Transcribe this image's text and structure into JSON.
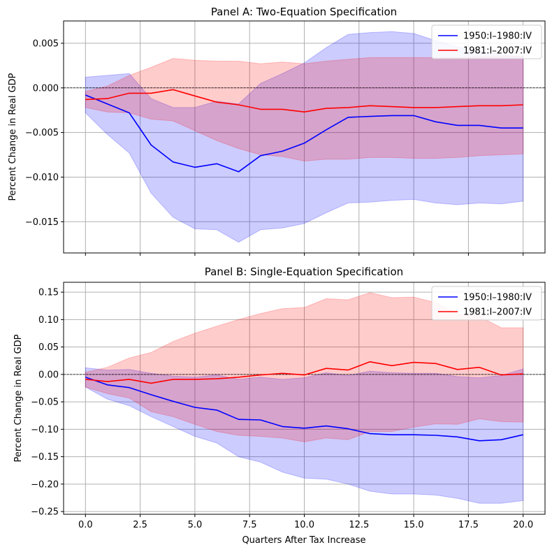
{
  "colors": {
    "blue": "#0000ff",
    "red": "#ff0000",
    "grid": "#b0b0b0"
  },
  "xlabel": "Quarters After Tax Increase",
  "xticks": [
    0.0,
    2.5,
    5.0,
    7.5,
    10.0,
    12.5,
    15.0,
    17.5,
    20.0
  ],
  "xtick_labels": [
    "0.0",
    "2.5",
    "5.0",
    "7.5",
    "10.0",
    "12.5",
    "15.0",
    "17.5",
    "20.0"
  ],
  "chart_data": [
    {
      "type": "line",
      "title": "Panel A: Two-Equation Specification",
      "ylabel": "Percent Change in Real GDP",
      "xlim": [
        -1,
        21
      ],
      "ylim": [
        -0.0185,
        0.0075
      ],
      "yticks": [
        0.005,
        0.0,
        -0.005,
        -0.01,
        -0.015
      ],
      "ytick_labels": [
        "0.005",
        "0.000",
        "−0.005",
        "−0.010",
        "−0.015"
      ],
      "zero_line": true,
      "grid": true,
      "legend": "top-right",
      "x": [
        0,
        1,
        2,
        3,
        4,
        5,
        6,
        7,
        8,
        9,
        10,
        11,
        12,
        13,
        14,
        15,
        16,
        17,
        18,
        19,
        20
      ],
      "series": [
        {
          "name": "1950:I–1980:IV",
          "color": "blue",
          "values": [
            -0.0008,
            -0.0018,
            -0.0028,
            -0.0064,
            -0.0083,
            -0.0089,
            -0.0085,
            -0.0094,
            -0.0076,
            -0.0071,
            -0.0062,
            -0.0047,
            -0.0033,
            -0.0032,
            -0.0031,
            -0.0031,
            -0.0038,
            -0.0042,
            -0.0042,
            -0.0045,
            -0.0045
          ],
          "upper": [
            0.0012,
            0.0014,
            0.0016,
            -0.0012,
            -0.0022,
            -0.0022,
            -0.0015,
            -0.0018,
            0.0005,
            0.0016,
            0.0028,
            0.0045,
            0.006,
            0.0062,
            0.0063,
            0.0061,
            0.0053,
            0.0046,
            0.0041,
            0.0037,
            0.0035
          ],
          "lower": [
            -0.0028,
            -0.0052,
            -0.0073,
            -0.0118,
            -0.0145,
            -0.0158,
            -0.0159,
            -0.0173,
            -0.0159,
            -0.0157,
            -0.0152,
            -0.014,
            -0.0129,
            -0.0128,
            -0.0126,
            -0.0125,
            -0.0129,
            -0.0131,
            -0.0129,
            -0.013,
            -0.0127
          ]
        },
        {
          "name": "1981:I–2007:IV",
          "color": "red",
          "values": [
            -0.0013,
            -0.0012,
            -0.0006,
            -0.0006,
            -0.0002,
            -0.0009,
            -0.0016,
            -0.0019,
            -0.0024,
            -0.0024,
            -0.0027,
            -0.0023,
            -0.0022,
            -0.002,
            -0.0021,
            -0.0022,
            -0.0022,
            -0.0021,
            -0.002,
            -0.002,
            -0.0019
          ],
          "upper": [
            -0.0004,
            0.0002,
            0.0014,
            0.0023,
            0.0033,
            0.0031,
            0.003,
            0.003,
            0.0027,
            0.0029,
            0.0027,
            0.003,
            0.0032,
            0.0034,
            0.0034,
            0.0034,
            0.0034,
            0.0034,
            0.0035,
            0.0035,
            0.0036
          ],
          "lower": [
            -0.0022,
            -0.0027,
            -0.0028,
            -0.0035,
            -0.0037,
            -0.0048,
            -0.0059,
            -0.0068,
            -0.0075,
            -0.0077,
            -0.0082,
            -0.008,
            -0.008,
            -0.0078,
            -0.0078,
            -0.0079,
            -0.0079,
            -0.0078,
            -0.0076,
            -0.0075,
            -0.0074
          ]
        }
      ]
    },
    {
      "type": "line",
      "title": "Panel B: Single-Equation Specification",
      "ylabel": "Percent Change in Real GDP",
      "xlim": [
        -1,
        21
      ],
      "ylim": [
        -0.255,
        0.168
      ],
      "yticks": [
        0.15,
        0.1,
        0.05,
        0.0,
        -0.05,
        -0.1,
        -0.15,
        -0.2,
        -0.25
      ],
      "ytick_labels": [
        "0.15",
        "0.10",
        "0.05",
        "0.00",
        "−0.05",
        "−0.10",
        "−0.15",
        "−0.20",
        "−0.25"
      ],
      "zero_line": true,
      "grid": true,
      "legend": "top-right",
      "x": [
        0,
        1,
        2,
        3,
        4,
        5,
        6,
        7,
        8,
        9,
        10,
        11,
        12,
        13,
        14,
        15,
        16,
        17,
        18,
        19,
        20
      ],
      "series": [
        {
          "name": "1950:I–1980:IV",
          "color": "blue",
          "values": [
            -0.005,
            -0.019,
            -0.024,
            -0.037,
            -0.049,
            -0.06,
            -0.065,
            -0.082,
            -0.083,
            -0.095,
            -0.098,
            -0.094,
            -0.099,
            -0.108,
            -0.11,
            -0.11,
            -0.111,
            -0.114,
            -0.121,
            -0.119,
            -0.11
          ],
          "upper": [
            0.012,
            0.008,
            0.009,
            0.002,
            -0.003,
            -0.005,
            -0.001,
            -0.009,
            -0.005,
            -0.009,
            -0.006,
            0.003,
            -0.002,
            0.006,
            0.003,
            0.002,
            0.002,
            -0.004,
            -0.006,
            -0.002,
            0.01
          ],
          "lower": [
            -0.023,
            -0.045,
            -0.057,
            -0.077,
            -0.095,
            -0.113,
            -0.125,
            -0.15,
            -0.16,
            -0.178,
            -0.189,
            -0.191,
            -0.2,
            -0.213,
            -0.218,
            -0.218,
            -0.22,
            -0.226,
            -0.235,
            -0.235,
            -0.23
          ]
        },
        {
          "name": "1981:I–2007:IV",
          "color": "red",
          "values": [
            -0.009,
            -0.013,
            -0.009,
            -0.016,
            -0.009,
            -0.009,
            -0.008,
            -0.005,
            -0.001,
            0.002,
            -0.001,
            0.011,
            0.008,
            0.023,
            0.016,
            0.022,
            0.02,
            0.009,
            0.013,
            -0.001,
            0.001
          ],
          "upper": [
            0.004,
            0.013,
            0.03,
            0.04,
            0.06,
            0.075,
            0.088,
            0.1,
            0.111,
            0.12,
            0.122,
            0.138,
            0.136,
            0.149,
            0.14,
            0.141,
            0.131,
            0.11,
            0.106,
            0.085,
            0.085
          ],
          "lower": [
            -0.023,
            -0.035,
            -0.043,
            -0.068,
            -0.077,
            -0.091,
            -0.104,
            -0.111,
            -0.113,
            -0.116,
            -0.123,
            -0.116,
            -0.119,
            -0.104,
            -0.104,
            -0.096,
            -0.09,
            -0.091,
            -0.081,
            -0.086,
            -0.087
          ]
        }
      ]
    }
  ]
}
